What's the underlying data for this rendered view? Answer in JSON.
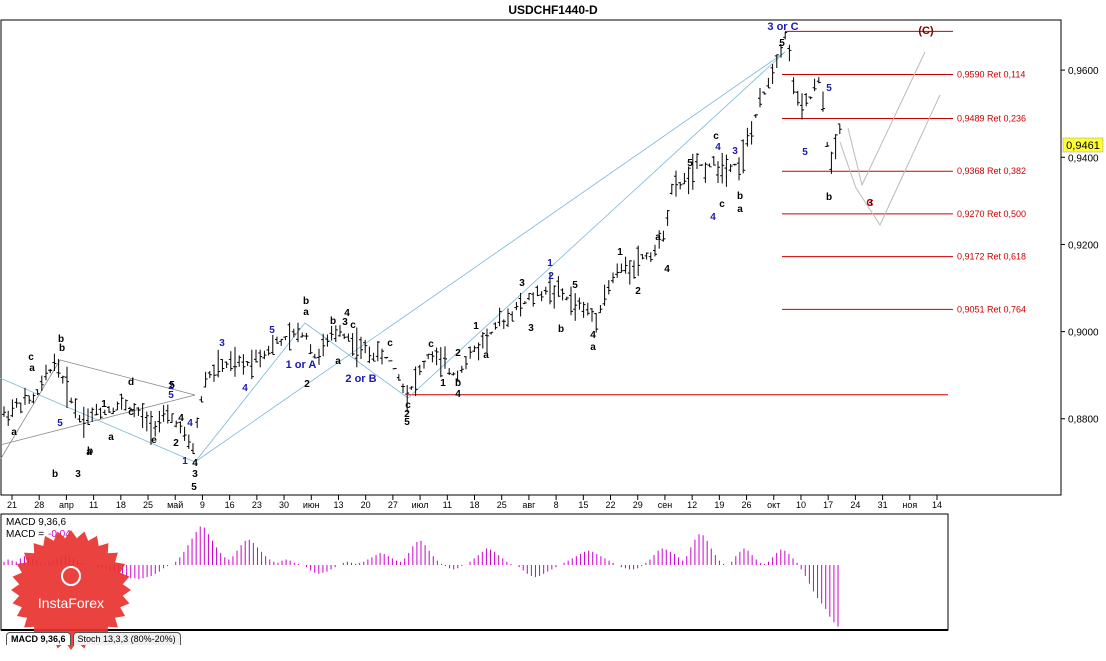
{
  "chart_data": {
    "type": "ohlc-wave",
    "title": "USDCHF1440-D",
    "price_axis": {
      "ticks": [
        "0,9600",
        "0,9400",
        "0,9200",
        "0,9000",
        "0,8800"
      ],
      "tick_values": [
        0.96,
        0.94,
        0.92,
        0.9,
        0.88
      ],
      "ylim": [
        0.8625,
        0.9715
      ],
      "current_price": "0,9461"
    },
    "time_axis": {
      "labels": [
        "21",
        "28",
        "апр",
        "11",
        "18",
        "25",
        "май",
        "9",
        "16",
        "23",
        "30",
        "июн",
        "13",
        "20",
        "27",
        "июл",
        "11",
        "18",
        "25",
        "авг",
        "8",
        "15",
        "22",
        "29",
        "сен",
        "12",
        "19",
        "26",
        "окт",
        "10",
        "17",
        "24",
        "31",
        "ноя",
        "14"
      ]
    },
    "fib_levels": [
      {
        "price": 0.9689,
        "label": ""
      },
      {
        "price": 0.959,
        "label": "0,9590 Ret 0,114"
      },
      {
        "price": 0.9489,
        "label": "0,9489 Ret 0,236"
      },
      {
        "price": 0.9368,
        "label": "0,9368 Ret 0,382"
      },
      {
        "price": 0.927,
        "label": "0,9270 Ret 0,500"
      },
      {
        "price": 0.9172,
        "label": "0,9172 Ret 0,618"
      },
      {
        "price": 0.9051,
        "label": "0,9051 Ret 0,764"
      },
      {
        "price": 0.8855,
        "label": ""
      }
    ],
    "wave_labels": [
      {
        "t": "3 or C",
        "x": -1,
        "p": 0.9722,
        "c": "#1a1ab0"
      },
      {
        "t": "5",
        "x": 0,
        "p": 0.972,
        "c": "#000000"
      },
      {
        "t": "5",
        "x": 0,
        "p": 0.9694,
        "c": "#1a1ab0"
      },
      {
        "t": "5",
        "x": 1,
        "p": 0.971,
        "c": "#1a1ab0"
      },
      {
        "t": "b",
        "x": 2,
        "p": 0.9585,
        "c": "#000000"
      },
      {
        "t": "a",
        "x": 3,
        "p": 0.9435,
        "c": "#000000"
      },
      {
        "t": "c",
        "x": 4,
        "p": 0.934,
        "c": "#000000"
      },
      {
        "t": "4",
        "x": 5,
        "p": 0.9323,
        "c": "#1a1ab0"
      },
      {
        "t": "3",
        "x": 6,
        "p": 0.949,
        "c": "#1a1ab0"
      },
      {
        "t": "5",
        "x": 7,
        "p": 0.9458,
        "c": "#000000"
      },
      {
        "t": "b",
        "x": 8,
        "p": 0.9437,
        "c": "#000000"
      },
      {
        "t": "3",
        "x": 9,
        "p": 0.9414,
        "c": "#000000"
      },
      {
        "t": "c",
        "x": 10,
        "p": 0.9348,
        "c": "#000000"
      },
      {
        "t": "4",
        "x": 11,
        "p": 0.9315,
        "c": "#1a1ab0"
      },
      {
        "t": "a",
        "x": 12,
        "p": 0.9339,
        "c": "#000000"
      },
      {
        "t": "4",
        "x": 13,
        "p": 0.9305,
        "c": "#000000"
      },
      {
        "t": "1",
        "x": 14,
        "p": 0.9216,
        "c": "#000000"
      },
      {
        "t": "2",
        "x": 15,
        "p": 0.9173,
        "c": "#000000"
      },
      {
        "t": "1",
        "x": 16,
        "p": 0.9198,
        "c": "#1a1ab0"
      },
      {
        "t": "2",
        "x": 17,
        "p": 0.9097,
        "c": "#1a1ab0"
      },
      {
        "t": "3",
        "x": 18,
        "p": 0.9173,
        "c": "#000000"
      },
      {
        "t": "5",
        "x": 19,
        "p": 0.9145,
        "c": "#000000"
      },
      {
        "t": "3",
        "x": 20,
        "p": 0.9116,
        "c": "#000000"
      },
      {
        "t": "b",
        "x": 21,
        "p": 0.9112,
        "c": "#000000"
      },
      {
        "t": "4",
        "x": 22,
        "p": 0.9025,
        "c": "#000000"
      },
      {
        "t": "a",
        "x": 23,
        "p": 0.9021,
        "c": "#000000"
      },
      {
        "t": "c",
        "x": 24,
        "p": 0.8993,
        "c": "#000000"
      },
      {
        "t": "4",
        "x": 25,
        "p": 0.8964,
        "c": "#000000"
      },
      {
        "t": "1",
        "x": 26,
        "p": 0.9029,
        "c": "#000000"
      },
      {
        "t": "2",
        "x": 27,
        "p": 0.8964,
        "c": "#000000"
      },
      {
        "t": "1",
        "x": 28,
        "p": 0.8985,
        "c": "#000000"
      },
      {
        "t": "b",
        "x": 29,
        "p": 0.896,
        "c": "#000000"
      },
      {
        "t": "a",
        "x": 30,
        "p": 0.8912,
        "c": "#000000"
      },
      {
        "t": "c",
        "x": 31,
        "p": 0.8912,
        "c": "#000000"
      },
      {
        "t": "2",
        "x": 32,
        "p": 0.8848,
        "c": "#000000"
      },
      {
        "t": "5",
        "x": 33,
        "p": 0.8825,
        "c": "#000000"
      },
      {
        "t": "c",
        "x": 34,
        "p": 0.881,
        "c": "#000000"
      },
      {
        "t": "2 or B",
        "x": 35,
        "p": 0.8794,
        "c": "#1a1ab0"
      },
      {
        "t": "4",
        "x": 36,
        "p": 0.8975,
        "c": "#000000"
      },
      {
        "t": "3",
        "x": 37,
        "p": 0.8915,
        "c": "#000000"
      },
      {
        "t": "b",
        "x": 38,
        "p": 0.9062,
        "c": "#000000"
      },
      {
        "t": "c",
        "x": 39,
        "p": 0.9045,
        "c": "#000000"
      },
      {
        "t": "a",
        "x": 40,
        "p": 0.904,
        "c": "#000000"
      },
      {
        "t": "2",
        "x": 41,
        "p": 0.9038,
        "c": "#000000"
      },
      {
        "t": "b",
        "x": 42,
        "p": 0.894,
        "c": "#000000"
      },
      {
        "t": "a",
        "x": 43,
        "p": 0.891,
        "c": "#000000"
      },
      {
        "t": "1 or A",
        "x": 44,
        "p": 0.9083,
        "c": "#1a1ab0"
      },
      {
        "t": "5",
        "x": 45,
        "p": 0.9053,
        "c": "#1a1ab0"
      },
      {
        "t": "4",
        "x": 46,
        "p": 0.8947,
        "c": "#1a1ab0"
      },
      {
        "t": "3",
        "x": 47,
        "p": 0.9013,
        "c": "#1a1ab0"
      },
      {
        "t": "2",
        "x": 48,
        "p": 0.8888,
        "c": "#1a1ab0"
      },
      {
        "t": "1",
        "x": 49,
        "p": 0.8982,
        "c": "#1a1ab0"
      },
      {
        "t": "4",
        "x": 50,
        "p": 0.8799,
        "c": "#000000"
      },
      {
        "t": "3",
        "x": 51,
        "p": 0.8729,
        "c": "#000000"
      },
      {
        "t": "5",
        "x": 52,
        "p": 0.8726,
        "c": "#000000"
      },
      {
        "t": "5",
        "x": 53,
        "p": 0.8698,
        "c": "#000000"
      },
      {
        "t": "5",
        "x": 54,
        "p": 0.8669,
        "c": "#1a1ab0"
      },
      {
        "t": "4",
        "x": 55,
        "p": 0.889,
        "c": "#000000"
      },
      {
        "t": "e",
        "x": 56,
        "p": 0.887,
        "c": "#000000"
      },
      {
        "t": "2",
        "x": 57,
        "p": 0.8802,
        "c": "#000000"
      },
      {
        "t": "d",
        "x": 58,
        "p": 0.877,
        "c": "#000000"
      },
      {
        "t": "1",
        "x": 59,
        "p": 0.8767,
        "c": "#000000"
      },
      {
        "t": "c",
        "x": 60,
        "p": 0.8885,
        "c": "#000000"
      },
      {
        "t": "a",
        "x": 61,
        "p": 0.89,
        "c": "#000000"
      },
      {
        "t": "a",
        "x": 62,
        "p": 0.8851,
        "c": "#000000"
      },
      {
        "t": "b",
        "x": 63,
        "p": 0.8782,
        "c": "#000000"
      },
      {
        "t": "b",
        "x": 64,
        "p": 0.874,
        "c": "#000000"
      },
      {
        "t": "a",
        "x": 65,
        "p": 0.8961,
        "c": "#000000"
      },
      {
        "t": "c",
        "x": 66,
        "p": 0.8943,
        "c": "#000000"
      },
      {
        "t": "5",
        "x": 67,
        "p": 0.8919,
        "c": "#1a1ab0"
      },
      {
        "t": "a",
        "x": 68,
        "p": 0.8943,
        "c": "#000000"
      },
      {
        "t": "b",
        "x": 69,
        "p": 0.8835,
        "c": "#000000"
      },
      {
        "t": "4",
        "x": 70,
        "p": 0.88,
        "c": "#1a1ab0"
      },
      {
        "t": "b",
        "x": 71,
        "p": 0.876,
        "c": "#000000"
      },
      {
        "t": "3",
        "x": 72,
        "p": 0.889,
        "c": "#000000"
      },
      {
        "t": "(C)",
        "x": 73,
        "p": 0.87,
        "c": "#800000"
      },
      {
        "t": "C",
        "x": 74,
        "p": 0.87,
        "c": "#cc0000"
      },
      {
        "t": "5",
        "x": 75,
        "p": 0.9713,
        "c": "#1a1ab0"
      },
      {
        "t": "4",
        "x": 76,
        "p": 0.9315,
        "c": "#1a1ab0"
      }
    ],
    "macd": {
      "label": "MACD 9,36,6",
      "value_label": "MACD =",
      "value": "-0,04",
      "values": [
        3,
        5,
        4,
        3,
        6,
        8,
        7,
        5,
        4,
        3,
        2,
        3,
        5,
        7,
        8,
        9,
        8,
        6,
        4,
        2,
        1,
        0,
        -1,
        -2,
        -3,
        -4,
        -5,
        -6,
        -8,
        -10,
        -11,
        -12,
        -12,
        -13,
        -12,
        -11,
        -10,
        -8,
        -6,
        -3,
        -1,
        0,
        3,
        7,
        12,
        18,
        24,
        30,
        35,
        34,
        28,
        22,
        16,
        11,
        7,
        5,
        8,
        13,
        18,
        22,
        23,
        20,
        16,
        12,
        8,
        5,
        3,
        2,
        4,
        5,
        4,
        2,
        1,
        0,
        -2,
        -5,
        -7,
        -8,
        -7,
        -6,
        -4,
        -2,
        0,
        2,
        3,
        2,
        1,
        2,
        3,
        5,
        7,
        9,
        11,
        10,
        8,
        6,
        4,
        3,
        6,
        11,
        17,
        21,
        22,
        18,
        13,
        8,
        4,
        1,
        -1,
        -3,
        -4,
        -3,
        -1,
        0,
        3,
        6,
        9,
        12,
        15,
        14,
        12,
        9,
        6,
        3,
        1,
        0,
        -2,
        -5,
        -8,
        -10,
        -11,
        -10,
        -8,
        -6,
        -4,
        -2,
        0,
        2,
        4,
        6,
        8,
        10,
        12,
        13,
        12,
        10,
        8,
        6,
        4,
        2,
        0,
        -2,
        -3,
        -4,
        -4,
        -3,
        -1,
        2,
        5,
        9,
        13,
        15,
        14,
        12,
        10,
        7,
        4,
        8,
        16,
        23,
        28,
        27,
        22,
        15,
        9,
        4,
        1,
        0,
        3,
        8,
        12,
        15,
        13,
        9,
        5,
        2,
        1,
        3,
        7,
        11,
        14,
        13,
        10,
        6,
        2,
        -4,
        -10,
        -17,
        -24,
        -30,
        -35,
        -40,
        -47,
        -52,
        -56
      ]
    },
    "tabs": [
      {
        "label": "MACD 9,36,6"
      },
      {
        "label": "Stoch 13,3,3 (80%-20%)"
      }
    ],
    "logo": {
      "name": "InstaForex"
    }
  }
}
